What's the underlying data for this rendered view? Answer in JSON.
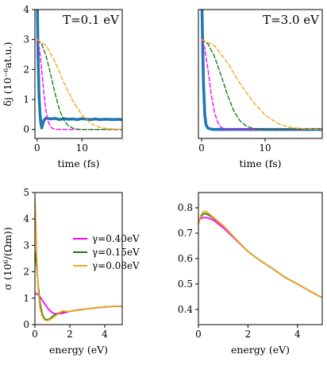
{
  "colors": {
    "current": "#1f77b4",
    "magenta": "#ff00ff",
    "green": "#118011",
    "orange": "#f5a623",
    "frame": "#000000"
  },
  "chart_data": [
    {
      "type": "line",
      "panel": "top-left",
      "annotation": "T=0.1 eV",
      "xlabel": "time (fs)",
      "ylabel": "δj (10⁻⁶at.u.)",
      "xlim": [
        -0.5,
        19
      ],
      "ylim": [
        -0.3,
        4
      ],
      "xticks": [
        0,
        10
      ],
      "yticks": [
        0,
        1,
        2,
        3,
        4
      ],
      "series": [
        {
          "role": "current",
          "x": [
            0.05,
            0.2,
            0.4,
            0.6,
            0.8,
            1.0,
            1.5,
            2,
            3,
            4,
            5,
            6,
            7,
            8,
            9,
            10,
            11,
            12,
            13,
            14,
            15,
            16,
            17,
            18,
            19
          ],
          "y": [
            4.2,
            2.5,
            1.2,
            0.6,
            0.25,
            0.05,
            0.3,
            0.38,
            0.35,
            0.37,
            0.33,
            0.36,
            0.34,
            0.35,
            0.33,
            0.36,
            0.34,
            0.33,
            0.35,
            0.33,
            0.34,
            0.34,
            0.33,
            0.34,
            0.33
          ]
        },
        {
          "role": "magenta",
          "x": [
            0,
            0.5,
            1,
            1.5,
            2,
            2.5,
            3,
            3.5,
            4,
            5,
            6,
            19
          ],
          "y": [
            3,
            2.7,
            2.0,
            1.2,
            0.6,
            0.25,
            0.08,
            0.03,
            0.01,
            0,
            0,
            0
          ]
        },
        {
          "role": "green",
          "x": [
            0,
            1,
            2,
            3,
            4,
            5,
            6,
            7,
            8,
            9,
            10,
            19
          ],
          "y": [
            3,
            2.85,
            2.45,
            1.85,
            1.2,
            0.65,
            0.3,
            0.12,
            0.04,
            0.01,
            0,
            0
          ]
        },
        {
          "role": "orange",
          "x": [
            0,
            2,
            4,
            6,
            8,
            10,
            12,
            14,
            16,
            18,
            19
          ],
          "y": [
            3,
            2.8,
            2.25,
            1.55,
            0.95,
            0.48,
            0.2,
            0.07,
            0.02,
            0.01,
            0
          ]
        }
      ]
    },
    {
      "type": "line",
      "panel": "top-right",
      "annotation": "T=3.0 eV",
      "xlabel": "time (fs)",
      "xlim": [
        -0.5,
        19
      ],
      "ylim": [
        -0.3,
        4
      ],
      "xticks": [
        0,
        10
      ],
      "series": [
        {
          "role": "current",
          "x": [
            0.05,
            0.15,
            0.3,
            0.5,
            0.7,
            1.0,
            1.5,
            2,
            4,
            8,
            12,
            19
          ],
          "y": [
            4.2,
            3.0,
            1.5,
            0.5,
            0.15,
            0.04,
            0.01,
            0,
            0,
            0,
            0,
            0
          ]
        },
        {
          "role": "magenta",
          "x": [
            0,
            0.5,
            1,
            1.5,
            2,
            2.5,
            3,
            3.5,
            4,
            5,
            6,
            19
          ],
          "y": [
            3,
            2.7,
            2.0,
            1.2,
            0.6,
            0.25,
            0.08,
            0.03,
            0.01,
            0,
            0,
            0
          ]
        },
        {
          "role": "green",
          "x": [
            0,
            1,
            2,
            3,
            4,
            5,
            6,
            7,
            8,
            9,
            10,
            19
          ],
          "y": [
            3,
            2.85,
            2.45,
            1.85,
            1.2,
            0.65,
            0.3,
            0.12,
            0.04,
            0.01,
            0,
            0
          ]
        },
        {
          "role": "orange",
          "x": [
            0,
            2,
            4,
            6,
            8,
            10,
            12,
            14,
            16,
            18,
            19
          ],
          "y": [
            3,
            2.8,
            2.25,
            1.55,
            0.95,
            0.48,
            0.2,
            0.07,
            0.02,
            0.01,
            0
          ]
        }
      ]
    },
    {
      "type": "line",
      "panel": "bottom-left",
      "xlabel": "energy (eV)",
      "ylabel": "σ (10⁶/(Ωm))",
      "xlim": [
        0,
        5
      ],
      "ylim": [
        0,
        5
      ],
      "xticks": [
        0,
        2,
        4
      ],
      "yticks": [
        0,
        1,
        2,
        3,
        4,
        5
      ],
      "legend": {
        "position": "center-right",
        "entries": [
          {
            "role": "magenta",
            "label": "γ=0.40eV"
          },
          {
            "role": "green",
            "label": "γ=0.15eV"
          },
          {
            "role": "orange",
            "label": "γ=0.08eV"
          }
        ]
      },
      "series": [
        {
          "role": "magenta",
          "x": [
            0,
            0.2,
            0.4,
            0.6,
            0.8,
            1.0,
            1.2,
            1.5,
            2,
            2.5,
            3,
            3.5,
            4,
            4.5,
            5
          ],
          "y": [
            1.2,
            1.12,
            0.95,
            0.75,
            0.57,
            0.45,
            0.4,
            0.42,
            0.5,
            0.56,
            0.6,
            0.64,
            0.67,
            0.69,
            0.7
          ]
        },
        {
          "role": "green",
          "x": [
            0,
            0.1,
            0.2,
            0.3,
            0.4,
            0.5,
            0.6,
            0.7,
            0.8,
            1.0,
            1.2,
            1.5,
            1.7,
            2,
            2.5,
            3,
            3.5,
            4,
            4.5,
            5
          ],
          "y": [
            2.75,
            2.2,
            1.4,
            0.8,
            0.45,
            0.27,
            0.2,
            0.18,
            0.2,
            0.3,
            0.4,
            0.48,
            0.5,
            0.5,
            0.55,
            0.6,
            0.64,
            0.67,
            0.69,
            0.7
          ]
        },
        {
          "role": "orange",
          "x": [
            0,
            0.05,
            0.1,
            0.15,
            0.2,
            0.3,
            0.4,
            0.5,
            0.6,
            0.7,
            0.8,
            1.0,
            1.2,
            1.4,
            1.6,
            1.8,
            2,
            2.5,
            3,
            3.5,
            4,
            4.5,
            5
          ],
          "y": [
            4.8,
            3.8,
            2.6,
            1.8,
            1.2,
            0.6,
            0.35,
            0.22,
            0.16,
            0.15,
            0.17,
            0.25,
            0.35,
            0.45,
            0.52,
            0.5,
            0.5,
            0.55,
            0.6,
            0.64,
            0.67,
            0.69,
            0.7
          ]
        }
      ]
    },
    {
      "type": "line",
      "panel": "bottom-right",
      "xlabel": "energy (eV)",
      "xlim": [
        0,
        5
      ],
      "ylim": [
        0.34,
        0.86
      ],
      "xticks": [
        0,
        2,
        4
      ],
      "yticks": [
        0.4,
        0.5,
        0.6,
        0.7,
        0.8
      ],
      "series": [
        {
          "role": "magenta",
          "x": [
            0,
            0.2,
            0.4,
            0.6,
            1.0,
            1.5,
            2,
            2.5,
            3,
            3.5,
            4,
            4.5,
            5
          ],
          "y": [
            0.752,
            0.762,
            0.76,
            0.752,
            0.722,
            0.675,
            0.628,
            0.592,
            0.56,
            0.526,
            0.5,
            0.472,
            0.446
          ]
        },
        {
          "role": "green",
          "x": [
            0,
            0.1,
            0.2,
            0.3,
            0.4,
            0.6,
            1.0,
            1.5,
            2,
            2.5,
            3,
            3.5,
            4,
            4.5,
            5
          ],
          "y": [
            0.745,
            0.765,
            0.776,
            0.777,
            0.772,
            0.76,
            0.73,
            0.678,
            0.628,
            0.592,
            0.56,
            0.526,
            0.5,
            0.472,
            0.446
          ]
        },
        {
          "role": "orange",
          "x": [
            0,
            0.1,
            0.2,
            0.3,
            0.4,
            0.6,
            1.0,
            1.5,
            2,
            2.5,
            3,
            3.5,
            4,
            4.5,
            5
          ],
          "y": [
            0.735,
            0.77,
            0.785,
            0.786,
            0.779,
            0.763,
            0.73,
            0.678,
            0.628,
            0.592,
            0.56,
            0.526,
            0.5,
            0.472,
            0.446
          ]
        }
      ]
    }
  ]
}
